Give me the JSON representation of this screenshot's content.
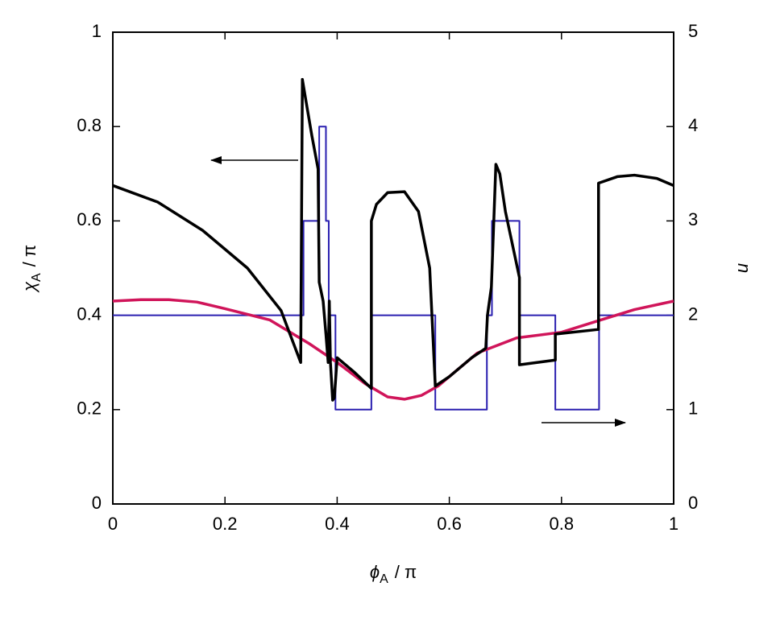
{
  "chart_data": {
    "type": "line",
    "xlabel_symbol": "ϕ",
    "xlabel_subscript": "A",
    "xlabel_suffix": "/ π",
    "ylabel_symbol": "χ",
    "ylabel_subscript": "A",
    "ylabel_suffix": "/ π",
    "y2label": "u",
    "xlim": [
      0,
      1
    ],
    "xticks": [
      0,
      0.2,
      0.4,
      0.6,
      0.8,
      1
    ],
    "ylim": [
      0,
      1
    ],
    "yticks": [
      0,
      0.2,
      0.4,
      0.6,
      0.8,
      1
    ],
    "y2lim": [
      0,
      5
    ],
    "y2ticks": [
      0,
      1,
      2,
      3,
      4,
      5
    ],
    "series": [
      {
        "color": "#2a1fb0",
        "width": 2,
        "axis": "y2",
        "x": [
          0,
          0.34,
          0.34,
          0.368,
          0.368,
          0.38,
          0.38,
          0.385,
          0.385,
          0.397,
          0.397,
          0.461,
          0.461,
          0.575,
          0.575,
          0.667,
          0.667,
          0.676,
          0.676,
          0.725,
          0.725,
          0.789,
          0.789,
          0.867,
          0.867,
          1
        ],
        "values": [
          2,
          2,
          3,
          3,
          4,
          4,
          3,
          3,
          2,
          2,
          1,
          1,
          2,
          2,
          1,
          1,
          2,
          2,
          3,
          3,
          2,
          2,
          1,
          1,
          2,
          2
        ]
      },
      {
        "color": "#d0155a",
        "width": 3.5,
        "x": [
          0,
          0.05,
          0.1,
          0.15,
          0.2,
          0.28,
          0.35,
          0.4,
          0.45,
          0.49,
          0.52,
          0.55,
          0.58,
          0.65,
          0.72,
          0.8,
          0.87,
          0.93,
          1
        ],
        "values": [
          0.43,
          0.433,
          0.433,
          0.428,
          0.414,
          0.39,
          0.34,
          0.3,
          0.255,
          0.227,
          0.222,
          0.23,
          0.25,
          0.32,
          0.352,
          0.364,
          0.39,
          0.412,
          0.43
        ]
      },
      {
        "color": "#000000",
        "width": 3.5,
        "x": [
          0,
          0.08,
          0.16,
          0.24,
          0.3,
          0.335,
          0.335,
          0.338,
          0.345,
          0.355,
          0.366,
          0.368,
          0.375,
          0.38,
          0.384,
          0.386,
          0.388,
          0.392,
          0.395,
          0.4,
          0.43,
          0.461,
          0.461,
          0.47,
          0.49,
          0.52,
          0.545,
          0.565,
          0.575,
          0.6,
          0.64,
          0.665,
          0.668,
          0.675,
          0.683,
          0.69,
          0.7,
          0.725,
          0.725,
          0.789,
          0.789,
          0.866,
          0.866,
          0.9,
          0.93,
          0.97,
          1
        ],
        "values": [
          0.675,
          0.64,
          0.58,
          0.5,
          0.41,
          0.3,
          0.3,
          0.9,
          0.85,
          0.78,
          0.71,
          0.47,
          0.43,
          0.36,
          0.3,
          0.43,
          0.3,
          0.22,
          0.225,
          0.31,
          0.28,
          0.245,
          0.6,
          0.635,
          0.66,
          0.662,
          0.62,
          0.5,
          0.25,
          0.27,
          0.31,
          0.33,
          0.4,
          0.46,
          0.72,
          0.7,
          0.62,
          0.48,
          0.295,
          0.305,
          0.36,
          0.37,
          0.68,
          0.694,
          0.697,
          0.69,
          0.675
        ]
      }
    ]
  }
}
